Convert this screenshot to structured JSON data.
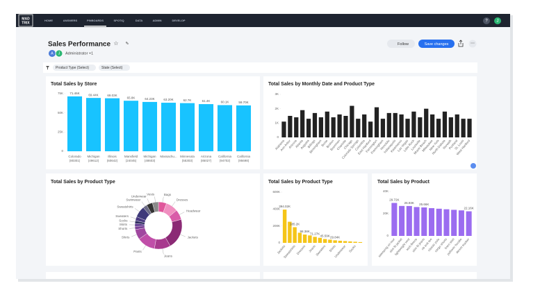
{
  "nav": {
    "logo": [
      "MAD",
      "TRIX"
    ],
    "items": [
      "HOME",
      "ANSWERS",
      "PINBOARDS",
      "SPOTIQ",
      "DATA",
      "ADMIN",
      "DEVELOP"
    ],
    "help": "?",
    "user": "J"
  },
  "header": {
    "title": "Sales Performance",
    "avatars": [
      "A",
      "J"
    ],
    "owner": "Administrator +1",
    "follow": "Follow",
    "save": "Save changes"
  },
  "filters": [
    "Product Type (Select)",
    "State (Select)"
  ],
  "chart_data": [
    {
      "type": "bar",
      "title": "Total Sales by Store",
      "color": "#18c3ff",
      "categories": [
        [
          "Colorado",
          "(80301)"
        ],
        [
          "Michigan",
          "(49612)"
        ],
        [
          "Illinois",
          "(60642)"
        ],
        [
          "Mansfield",
          "(24045)"
        ],
        [
          "Michigan",
          "(48603)"
        ],
        [
          "Massachu..."
        ],
        [
          "Minnesota",
          "(55303)"
        ],
        [
          "Arizona",
          "(85027)"
        ],
        [
          "California",
          "(94702)"
        ],
        [
          "California",
          "(95698)"
        ]
      ],
      "values": [
        71460,
        69440,
        69030,
        65800,
        64230,
        63200,
        62700,
        61400,
        60100,
        59700
      ],
      "value_labels": [
        "71.46K",
        "69.44K",
        "69.03K",
        "65.8K",
        "64.23K",
        "63.20K",
        "62.7K",
        "61.4K",
        "60.1K",
        "59.70K"
      ],
      "ylim": [
        0,
        75000
      ],
      "yticks": [
        0,
        {
          "value": 25000,
          "label": "25K"
        },
        {
          "value": 50000,
          "label": "50K"
        },
        {
          "value": 75000,
          "label": "75K"
        }
      ]
    },
    {
      "type": "bar",
      "title": "Total Sales by Monthly Date and Product Type",
      "color": "#222222",
      "categories": [
        "Alabama",
        "Ann Arbor",
        "Arizona",
        "Atlanta",
        "Augusta",
        "Billings",
        "Birmingham",
        "Boise",
        "Boston",
        "Bozeman",
        "Charlotte",
        "Chicago",
        "Colorado Springs",
        "Columbia",
        "East Hartford",
        "Farmington",
        "Framingham",
        "Honolulu",
        "Indianapolis",
        "Kalamazoo",
        "Las Vegas",
        "Little Rock",
        "Louisville",
        "Miami Beach",
        "Milwaukee",
        "New York",
        "North Dakota",
        "Norwalk",
        "Portland",
        "St. Louis",
        "West Hartford"
      ],
      "values": [
        1100,
        1500,
        1400,
        1900,
        1300,
        1700,
        1400,
        1800,
        1400,
        1600,
        1500,
        2200,
        1300,
        1600,
        1100,
        2100,
        1300,
        1700,
        1700,
        1600,
        1300,
        1800,
        1400,
        2000,
        1600,
        1300,
        1800,
        1400,
        1600,
        1300,
        1300
      ],
      "ylim": [
        0,
        3000
      ],
      "yticks": [
        0,
        {
          "value": 1000,
          "label": "1K"
        },
        {
          "value": 2000,
          "label": "2K"
        },
        {
          "value": 3000,
          "label": "3K"
        }
      ]
    },
    {
      "type": "donut",
      "title": "Total Sales by Product Type",
      "categories": [
        "Bags",
        "Dresses",
        "Headwear",
        "Jackets",
        "Jeans",
        "Pants",
        "Shirts",
        "Shorts",
        "Skirts",
        "Socks",
        "Sweaters",
        "Sweatshirts",
        "Swimwear",
        "Underwear",
        "Vests"
      ],
      "values": [
        100000,
        150000,
        125000,
        375000,
        200000,
        225000,
        125000,
        40000,
        35000,
        35000,
        50000,
        140000,
        50000,
        75000,
        75000
      ],
      "colors": [
        "#e0569b",
        "#f08fc0",
        "#d95ba8",
        "#8b2a75",
        "#a83a8e",
        "#c04ea8",
        "#a0479f",
        "#7a3f96",
        "#5d3a8e",
        "#2f2f5f",
        "#4b3b82",
        "#3f3a7a",
        "#6b6b85",
        "#333333",
        "#8a8a8a"
      ]
    },
    {
      "type": "bar",
      "title": "Total Sales by Product Type",
      "color": "#f5c518",
      "categories": [
        "Jackets",
        null,
        "Sweatshirts",
        null,
        "Dresses",
        null,
        "Jeans",
        null,
        "Sweaters",
        null,
        "Shirts",
        null,
        "Underwear",
        null,
        "Socks",
        null
      ],
      "values": [
        394020,
        250000,
        185200,
        120000,
        98380,
        88000,
        71270,
        60000,
        45590,
        38000,
        29840,
        25000,
        21000,
        17000,
        13000,
        9000
      ],
      "value_labels": [
        "394.02K",
        null,
        "185.2K",
        null,
        "98.38K",
        null,
        "71.27K",
        null,
        "45.59K",
        null,
        "29.84K",
        null,
        null,
        null,
        null,
        null
      ],
      "ylim": [
        0,
        600000
      ],
      "yticks": [
        0,
        {
          "value": 200000,
          "label": "200K"
        },
        {
          "value": 400000,
          "label": "400K"
        },
        {
          "value": 600000,
          "label": "600K"
        }
      ]
    },
    {
      "type": "bar",
      "title": "Total Sales by Product",
      "color": "#9b6cf0",
      "categories": [
        "sweeping on tour",
        "slim fit jacket",
        "lightweight vest",
        "tech fleece",
        "slim fit jeans",
        "rib knit tee",
        "classic polo",
        "cargo shorts",
        "linen shirt",
        "pullover hoodie",
        "denim trucker"
      ],
      "values": [
        29720,
        27000,
        26930,
        26000,
        25660,
        25000,
        24500,
        24000,
        23500,
        23000,
        22160
      ],
      "value_labels": [
        "29.72K",
        null,
        "26.93K",
        null,
        "25.66K",
        null,
        null,
        null,
        null,
        null,
        "22.16K"
      ],
      "ylim": [
        0,
        40000
      ],
      "yticks": [
        0,
        {
          "value": 20000,
          "label": "20K"
        },
        {
          "value": 40000,
          "label": "40K"
        }
      ]
    }
  ]
}
